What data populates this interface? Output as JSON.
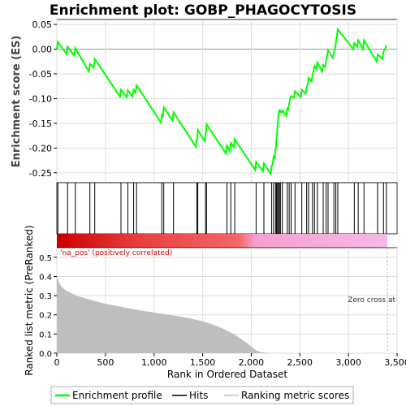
{
  "chart_data": {
    "type": "line",
    "title": "Enrichment plot: GOBP_PHAGOCYTOSIS",
    "xlabel": "Rank in Ordered Dataset",
    "es_ylabel": "Enrichment score (ES)",
    "metric_ylabel": "Ranked list metric (PreRanked)",
    "xlim": [
      0,
      3500
    ],
    "x_ticks": [
      0,
      500,
      1000,
      1500,
      2000,
      2500,
      3000,
      3500
    ],
    "x_tick_labels": [
      "0",
      "500",
      "1,000",
      "1,500",
      "2,000",
      "2,500",
      "3,000",
      "3,500"
    ],
    "es_ylim": [
      -0.27,
      0.06
    ],
    "es_ticks": [
      0.05,
      0.0,
      -0.05,
      -0.1,
      -0.15,
      -0.2,
      -0.25
    ],
    "es_tick_labels": [
      "0.05",
      "0.00",
      "-0.05",
      "-0.10",
      "-0.15",
      "-0.20",
      "-0.25"
    ],
    "metric_ylim": [
      0,
      0.55
    ],
    "metric_ticks": [
      0.0,
      0.1,
      0.2,
      0.3,
      0.4,
      0.5
    ],
    "metric_tick_labels": [
      "0.0",
      "0.1",
      "0.2",
      "0.3",
      "0.4",
      "0.5"
    ],
    "n_genes": 3400,
    "positive_label": "'na_pos' (positively correlated)",
    "zero_cross_label": "Zero cross at",
    "zero_cross_rank": 3400,
    "hits": [
      10,
      110,
      190,
      340,
      390,
      660,
      730,
      790,
      820,
      1080,
      1100,
      1200,
      1440,
      1450,
      1530,
      1540,
      1750,
      1790,
      1830,
      2050,
      2130,
      2210,
      2230,
      2250,
      2260,
      2270,
      2280,
      2290,
      2300,
      2320,
      2370,
      2390,
      2410,
      2450,
      2520,
      2570,
      2590,
      2630,
      2650,
      2680,
      2740,
      2770,
      2790,
      2850,
      2870,
      2890,
      3060,
      3100,
      3160,
      3300,
      3360,
      3390
    ],
    "enrichment_profile": {
      "x": [
        0,
        10,
        100,
        110,
        180,
        190,
        330,
        340,
        380,
        390,
        650,
        660,
        720,
        730,
        780,
        790,
        810,
        820,
        1070,
        1080,
        1090,
        1100,
        1190,
        1200,
        1430,
        1440,
        1445,
        1450,
        1520,
        1530,
        1535,
        1540,
        1740,
        1750,
        1780,
        1790,
        1820,
        1830,
        2040,
        2050,
        2120,
        2130,
        2200,
        2210,
        2220,
        2230,
        2240,
        2250,
        2255,
        2260,
        2265,
        2270,
        2275,
        2280,
        2285,
        2290,
        2295,
        2300,
        2310,
        2320,
        2360,
        2370,
        2380,
        2390,
        2400,
        2410,
        2440,
        2450,
        2510,
        2520,
        2560,
        2570,
        2580,
        2590,
        2620,
        2630,
        2640,
        2650,
        2670,
        2680,
        2730,
        2740,
        2760,
        2770,
        2780,
        2790,
        2840,
        2850,
        2860,
        2870,
        2880,
        2890,
        3050,
        3060,
        3090,
        3100,
        3150,
        3160,
        3290,
        3300,
        3350,
        3360,
        3380,
        3390
      ],
      "y": [
        0.0,
        0.015,
        -0.01,
        0.005,
        -0.013,
        0.002,
        -0.045,
        -0.03,
        -0.037,
        -0.02,
        -0.096,
        -0.082,
        -0.097,
        -0.083,
        -0.096,
        -0.082,
        -0.088,
        -0.073,
        -0.148,
        -0.133,
        -0.136,
        -0.118,
        -0.144,
        -0.128,
        -0.197,
        -0.182,
        -0.178,
        -0.163,
        -0.186,
        -0.171,
        -0.168,
        -0.152,
        -0.211,
        -0.195,
        -0.206,
        -0.19,
        -0.198,
        -0.182,
        -0.244,
        -0.228,
        -0.247,
        -0.231,
        -0.252,
        -0.236,
        -0.232,
        -0.217,
        -0.219,
        -0.204,
        -0.195,
        -0.18,
        -0.172,
        -0.157,
        -0.148,
        -0.133,
        -0.128,
        -0.122,
        -0.128,
        -0.125,
        -0.128,
        -0.124,
        -0.135,
        -0.12,
        -0.122,
        -0.11,
        -0.1,
        -0.095,
        -0.098,
        -0.085,
        -0.097,
        -0.082,
        -0.09,
        -0.077,
        -0.072,
        -0.058,
        -0.065,
        -0.052,
        -0.045,
        -0.034,
        -0.04,
        -0.027,
        -0.045,
        -0.032,
        -0.036,
        -0.022,
        -0.015,
        -0.002,
        -0.018,
        -0.005,
        0.0,
        0.012,
        0.026,
        0.04,
        0.0,
        0.012,
        0.005,
        0.018,
        0.0,
        0.018,
        -0.025,
        -0.011,
        -0.019,
        -0.005,
        0.002,
        0.008
      ]
    },
    "ranked_metric": {
      "x": [
        0,
        20,
        50,
        100,
        200,
        300,
        400,
        500,
        600,
        700,
        800,
        900,
        1000,
        1100,
        1200,
        1300,
        1400,
        1500,
        1600,
        1700,
        1800,
        1850,
        1900,
        1950,
        2000,
        2050,
        2100,
        2150,
        2200,
        2300,
        2500,
        3000,
        3400
      ],
      "y": [
        0.41,
        0.37,
        0.345,
        0.325,
        0.3,
        0.285,
        0.27,
        0.258,
        0.248,
        0.238,
        0.228,
        0.22,
        0.212,
        0.204,
        0.197,
        0.188,
        0.178,
        0.166,
        0.15,
        0.13,
        0.105,
        0.09,
        0.072,
        0.055,
        0.035,
        0.015,
        0.006,
        0.002,
        0.0,
        0.0,
        0.0,
        0.0,
        0.0
      ]
    }
  },
  "legend": {
    "profile": "Enrichment profile",
    "hits": "Hits",
    "metric": "Ranking metric scores",
    "profile_color": "#00ff00",
    "hits_color": "#000000",
    "metric_color": "#c0c0c0"
  },
  "colors": {
    "profile": "#00ff00",
    "hits": "#000000",
    "metric_fill": "#bebebe",
    "grid": "#dddddd",
    "positive_label": "#cc0000",
    "zero_line": "#c0c0c0",
    "bar_stops": [
      "#cc0000",
      "#e84040",
      "#f46666",
      "#f7a0d0",
      "#f5b8e6"
    ]
  }
}
